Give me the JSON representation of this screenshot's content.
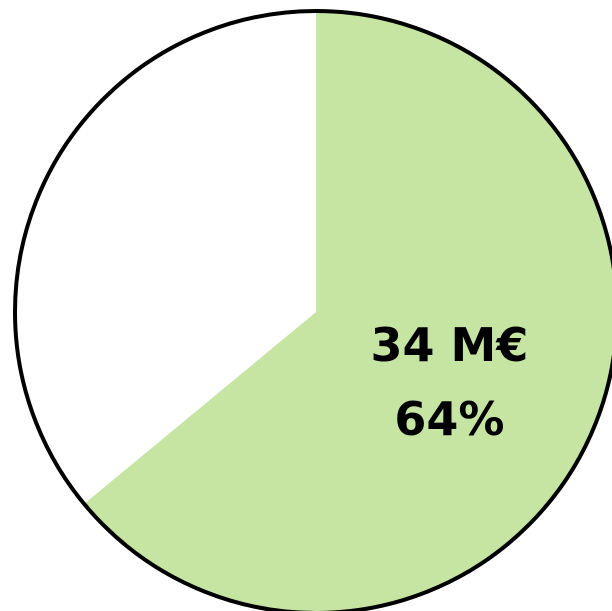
{
  "chart_data": {
    "type": "pie",
    "slices": [
      {
        "value": 64,
        "amount_label": "34 M€",
        "percent_label": "64%",
        "color": "#c6e5a3",
        "labeled": true
      },
      {
        "value": 36,
        "amount_label": "",
        "percent_label": "",
        "color": "#ffffff",
        "labeled": false
      }
    ],
    "start_angle_deg": 0,
    "direction": "clockwise",
    "outline_color": "#000000",
    "legend": "none"
  }
}
